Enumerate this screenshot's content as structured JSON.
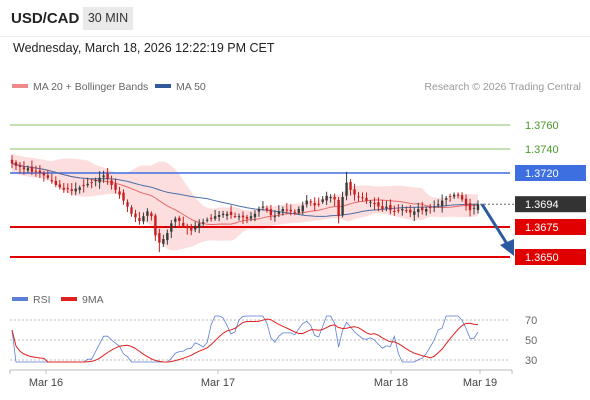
{
  "header": {
    "symbol": "USD/CAD",
    "timeframe": "30 MIN",
    "timestamp": "Wednesday, March 18, 2026 12:22:19 PM CET"
  },
  "legend": {
    "items": [
      {
        "label": "MA 20 + Bollinger Bands",
        "color": "#f08a8a"
      },
      {
        "label": "MA 50",
        "color": "#2f5b9a"
      }
    ],
    "credit": "Research © 2026 Trading Central"
  },
  "colors": {
    "bullish": "#3a3a3a",
    "bearish": "#c91d1d",
    "resistance_blue": "#3d6fe0",
    "resistance_green": "#8cc26a",
    "support_red": "#e00000",
    "band_fill": "#fdd8d8",
    "ma20": "#e46a6a",
    "ma50": "#4a6ea8",
    "arrow": "#2a5aa0"
  },
  "chart_data": {
    "type": "candlestick",
    "ylim": [
      1.3635,
      1.3785
    ],
    "levels": [
      {
        "value": 1.376,
        "label": "1.3760",
        "style": "resistance-green"
      },
      {
        "value": 1.374,
        "label": "1.3740",
        "style": "resistance-green"
      },
      {
        "value": 1.372,
        "label": "1.3720",
        "style": "resistance-blue"
      },
      {
        "value": 1.3694,
        "label": "1.3694",
        "style": "last-price"
      },
      {
        "value": 1.3675,
        "label": "1.3675",
        "style": "support-red"
      },
      {
        "value": 1.365,
        "label": "1.3650",
        "style": "support-red"
      }
    ],
    "forecast_arrow": {
      "from": 1.3694,
      "to": 1.365
    },
    "x_ticks": [
      "Mar 16",
      "Mar 17",
      "Mar 18",
      "Mar 19"
    ],
    "close": [
      1.3728,
      1.3726,
      1.3725,
      1.3723,
      1.3724,
      1.3721,
      1.3722,
      1.372,
      1.3718,
      1.3716,
      1.3713,
      1.371,
      1.3708,
      1.3706,
      1.3707,
      1.3705,
      1.3707,
      1.3708,
      1.3709,
      1.3711,
      1.3712,
      1.3714,
      1.3716,
      1.3718,
      1.3715,
      1.371,
      1.3706,
      1.3702,
      1.3697,
      1.3692,
      1.3686,
      1.3683,
      1.368,
      1.3684,
      1.3688,
      1.3684,
      1.3668,
      1.3662,
      1.3665,
      1.367,
      1.3678,
      1.3682,
      1.368,
      1.3676,
      1.3674,
      1.3672,
      1.3676,
      1.3678,
      1.3679,
      1.3681,
      1.3682,
      1.3684,
      1.3685,
      1.3686,
      1.3686,
      1.3685,
      1.3684,
      1.3684,
      1.3683,
      1.3682,
      1.3684,
      1.3686,
      1.369,
      1.3692,
      1.3689,
      1.3685,
      1.3684,
      1.3688,
      1.369,
      1.3689,
      1.3688,
      1.3687,
      1.369,
      1.3693,
      1.3697,
      1.3696,
      1.3693,
      1.3694,
      1.3698,
      1.3701,
      1.37,
      1.3698,
      1.3684,
      1.37,
      1.3712,
      1.3706,
      1.3702,
      1.37,
      1.3699,
      1.3697,
      1.3696,
      1.3694,
      1.3692,
      1.369,
      1.3692,
      1.3689,
      1.3688,
      1.3689,
      1.369,
      1.3689,
      1.3687,
      1.3688,
      1.369,
      1.3689,
      1.369,
      1.3691,
      1.3692,
      1.3694,
      1.3697,
      1.3699,
      1.37,
      1.3702,
      1.3701,
      1.3698,
      1.3693,
      1.3689,
      1.3691,
      1.3694
    ]
  },
  "rsi_panel": {
    "legend": [
      {
        "label": "RSI",
        "color": "#5a7fd4"
      },
      {
        "label": "9MA",
        "color": "#e02020"
      }
    ],
    "levels": [
      {
        "value": 70,
        "label": "70"
      },
      {
        "value": 50,
        "label": "50"
      },
      {
        "value": 30,
        "label": "30"
      }
    ],
    "ylim": [
      22,
      78
    ]
  }
}
